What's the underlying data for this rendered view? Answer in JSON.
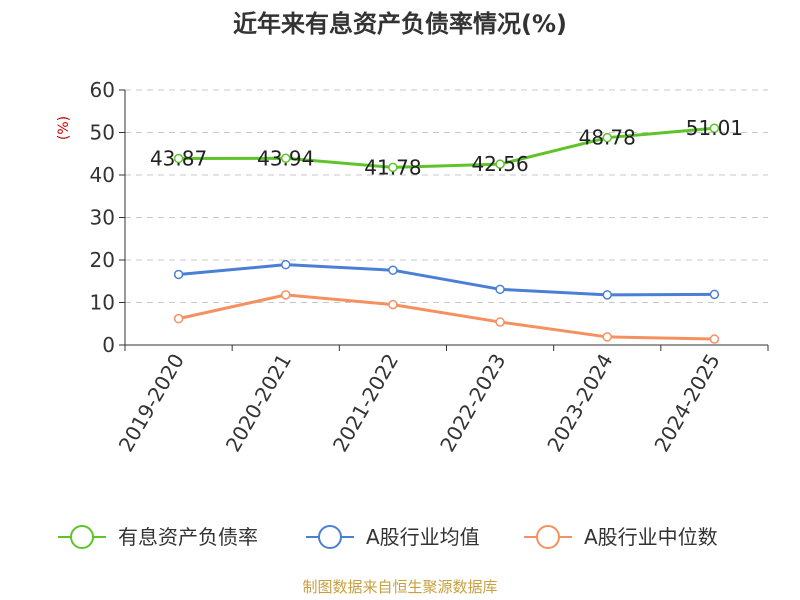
{
  "chart_data": {
    "type": "line",
    "title": "近年来有息资产负债率情况(%)",
    "ylabel": "(%)",
    "xlabel": "",
    "categories": [
      "2019-2020",
      "2020-2021",
      "2021-2022",
      "2022-2023",
      "2023-2024",
      "2024-2025"
    ],
    "ylim": [
      0,
      60
    ],
    "yticks": [
      0,
      10,
      20,
      30,
      40,
      50,
      60
    ],
    "grid": true,
    "legend_position": "bottom",
    "series": [
      {
        "name": "有息资产负债率",
        "color": "#5ec42a",
        "values": [
          43.87,
          43.94,
          41.78,
          42.56,
          48.78,
          51.01
        ],
        "labels": [
          "43.87",
          "43.94",
          "41.78",
          "42.56",
          "48.78",
          "51.01"
        ]
      },
      {
        "name": "A股行业均值",
        "color": "#4a7fd6",
        "values": [
          16.6,
          18.9,
          17.6,
          13.1,
          11.8,
          11.9
        ]
      },
      {
        "name": "A股行业中位数",
        "color": "#f59060",
        "values": [
          6.2,
          11.8,
          9.5,
          5.4,
          1.9,
          1.4
        ]
      }
    ],
    "source": "制图数据来自恒生聚源数据库"
  }
}
